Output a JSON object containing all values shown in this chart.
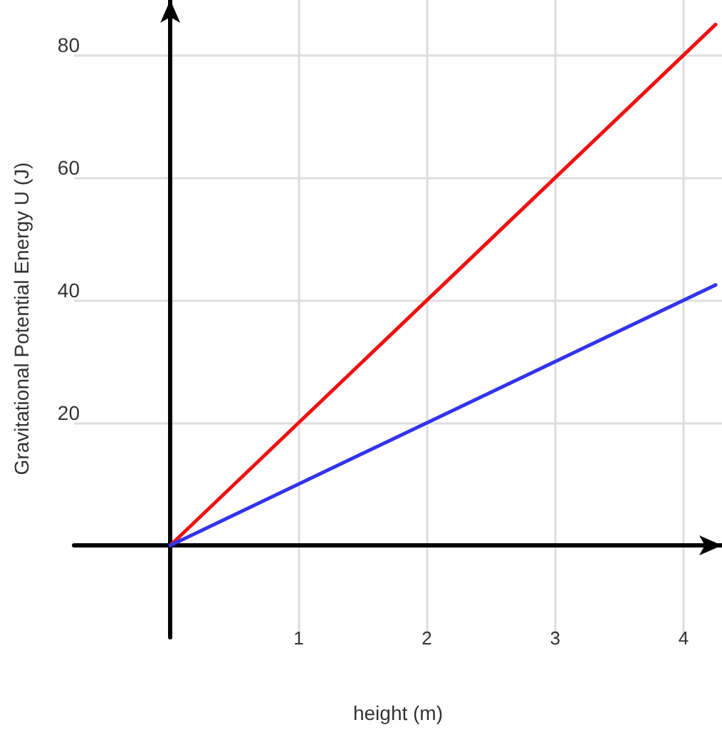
{
  "chart_data": {
    "type": "line",
    "xlabel": "height (m)",
    "ylabel": "Gravitational Potential Energy U (J)",
    "x": [
      0,
      4.25
    ],
    "series": [
      {
        "color": "#ee1111",
        "values": [
          0,
          85
        ]
      },
      {
        "color": "#3333ee",
        "values": [
          0,
          42.5
        ]
      }
    ],
    "xlim": [
      -0.75,
      4.3
    ],
    "ylim": [
      -15,
      89
    ],
    "xticks": [
      1,
      2,
      3,
      4
    ],
    "yticks": [
      20,
      40,
      60,
      80
    ],
    "grid": true,
    "marker": "none",
    "line_style": "solid"
  }
}
